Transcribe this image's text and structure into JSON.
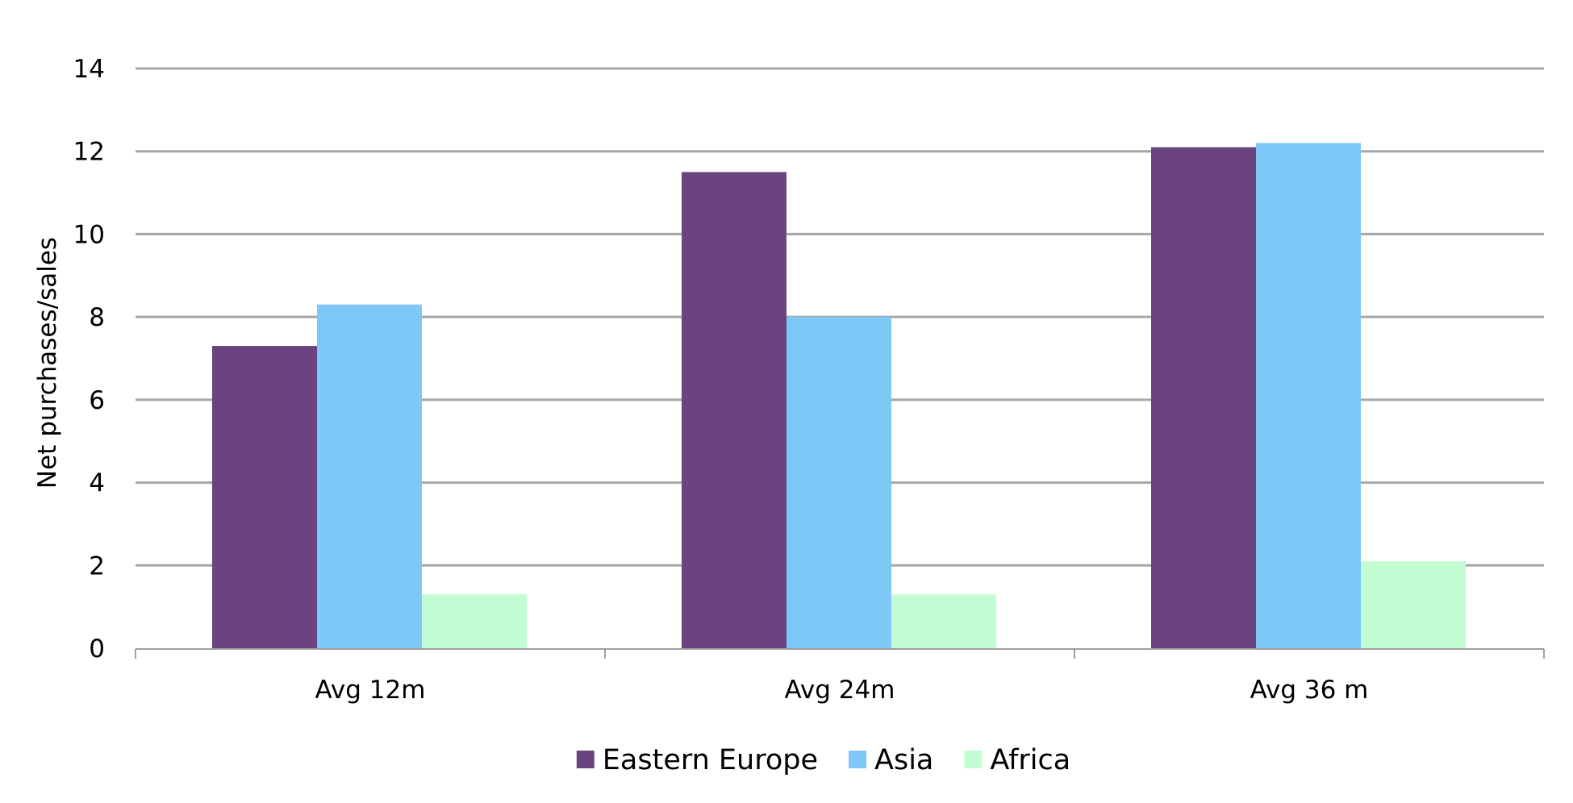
{
  "chart_data": {
    "type": "bar",
    "title": "",
    "xlabel": "",
    "ylabel": "Net purchases/sales",
    "categories": [
      "Avg 12m",
      "Avg 24m",
      "Avg 36 m"
    ],
    "series": [
      {
        "name": "Eastern Europe",
        "color": "#6a4380",
        "values": [
          7.3,
          11.5,
          12.1
        ]
      },
      {
        "name": "Asia",
        "color": "#7ec8f8",
        "values": [
          8.3,
          8.0,
          12.2
        ]
      },
      {
        "name": "Africa",
        "color": "#c1fcd2",
        "values": [
          1.3,
          1.3,
          2.1
        ]
      }
    ],
    "ylim": [
      0,
      14
    ],
    "yticks": [
      0,
      2,
      4,
      6,
      8,
      10,
      12,
      14
    ],
    "grid": true,
    "legend": "bottom"
  }
}
